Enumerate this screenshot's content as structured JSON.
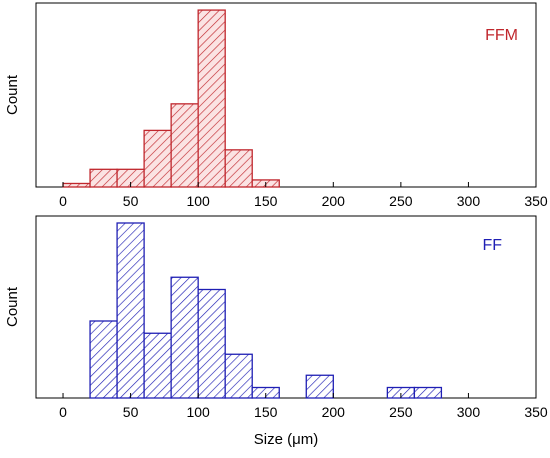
{
  "chart_data": [
    {
      "type": "bar",
      "panel": "top",
      "series": [
        {
          "name": "FFM",
          "color": "#c0272d",
          "pattern": "diagonal-hatch"
        }
      ],
      "bins": [
        {
          "x0": 0,
          "x1": 20,
          "count": 2
        },
        {
          "x0": 20,
          "x1": 40,
          "count": 10
        },
        {
          "x0": 40,
          "x1": 60,
          "count": 10
        },
        {
          "x0": 60,
          "x1": 80,
          "count": 32
        },
        {
          "x0": 80,
          "x1": 100,
          "count": 47
        },
        {
          "x0": 100,
          "x1": 120,
          "count": 100
        },
        {
          "x0": 120,
          "x1": 140,
          "count": 21
        },
        {
          "x0": 140,
          "x1": 160,
          "count": 4
        }
      ],
      "xlim": [
        -20,
        350
      ],
      "ylim": [
        0,
        104
      ],
      "xticks": [
        0,
        50,
        100,
        150,
        200,
        250,
        300,
        350
      ],
      "xlabel": "",
      "ylabel": "Count",
      "legend_text": "FFM",
      "legend_position": "top-right",
      "grid": false
    },
    {
      "type": "bar",
      "panel": "bottom",
      "series": [
        {
          "name": "FF",
          "color": "#1f1fb4",
          "pattern": "diagonal-hatch"
        }
      ],
      "bins": [
        {
          "x0": 20,
          "x1": 40,
          "count": 44
        },
        {
          "x0": 40,
          "x1": 60,
          "count": 100
        },
        {
          "x0": 60,
          "x1": 80,
          "count": 37
        },
        {
          "x0": 80,
          "x1": 100,
          "count": 69
        },
        {
          "x0": 100,
          "x1": 120,
          "count": 62
        },
        {
          "x0": 120,
          "x1": 140,
          "count": 25
        },
        {
          "x0": 140,
          "x1": 160,
          "count": 6
        },
        {
          "x0": 180,
          "x1": 200,
          "count": 13
        },
        {
          "x0": 240,
          "x1": 260,
          "count": 6
        },
        {
          "x0": 260,
          "x1": 280,
          "count": 6
        }
      ],
      "xlim": [
        -20,
        350
      ],
      "ylim": [
        0,
        104
      ],
      "xticks": [
        0,
        50,
        100,
        150,
        200,
        250,
        300,
        350
      ],
      "xlabel": "Size (μm)",
      "ylabel": "Count",
      "legend_text": "FF",
      "legend_position": "top-right",
      "grid": false
    }
  ]
}
